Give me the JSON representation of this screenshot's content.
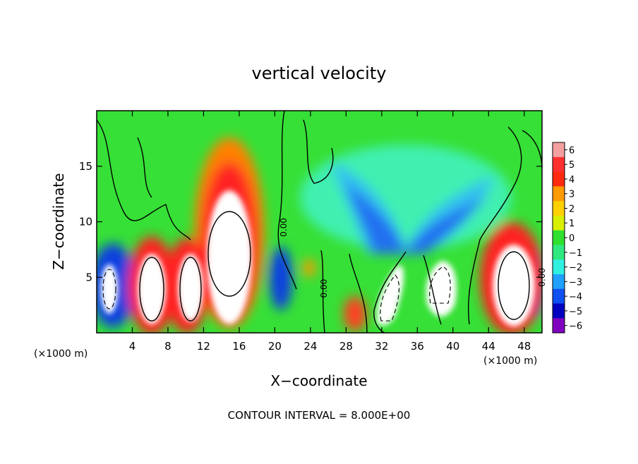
{
  "chart_data": {
    "type": "heatmap",
    "title": "vertical velocity",
    "xlabel": "X−coordinate",
    "ylabel": "Z−coordinate",
    "x_unit_left": "(×1000 m)",
    "x_unit_right": "(×1000 m)",
    "footer": "CONTOUR INTERVAL = 8.000E+00",
    "xlim": [
      0,
      50
    ],
    "ylim": [
      0,
      20
    ],
    "x_ticks": [
      4,
      8,
      12,
      16,
      20,
      24,
      28,
      32,
      36,
      40,
      44,
      48
    ],
    "y_ticks": [
      5,
      10,
      15
    ],
    "colorbar": {
      "levels": [
        6,
        5,
        4,
        3,
        2,
        1,
        0,
        "−1",
        "−2",
        "−3",
        "−4",
        "−5",
        "−6"
      ],
      "colors": [
        "#f4a0a0",
        "#ff3030",
        "#ff2a10",
        "#ff9a00",
        "#ffd000",
        "#d8f000",
        "#30e030",
        "#30e880",
        "#30f0e0",
        "#20a0ff",
        "#1050f0",
        "#0000c0",
        "#8000c0"
      ]
    },
    "contour_labels": [
      {
        "text": "0.00",
        "x": 21,
        "y": 9.5
      },
      {
        "text": "0.00",
        "x": 25.5,
        "y": 4
      },
      {
        "text": "0.00",
        "x": 50,
        "y": 5
      }
    ],
    "updraft_cells": [
      {
        "x": 1.5,
        "z": 4.5,
        "value": -9
      },
      {
        "x": 6.5,
        "z": 4.2,
        "value": 12
      },
      {
        "x": 10.5,
        "z": 4.2,
        "value": 11
      },
      {
        "x": 14.5,
        "z": 7.5,
        "value": 20
      },
      {
        "x": 20,
        "z": 6,
        "value": -3
      },
      {
        "x": 24,
        "z": 6,
        "value": 2
      },
      {
        "x": 29,
        "z": 2,
        "value": 3
      },
      {
        "x": 33,
        "z": 3.5,
        "value": -8
      },
      {
        "x": 38,
        "z": 5,
        "value": -8
      },
      {
        "x": 46.5,
        "z": 5,
        "value": 12
      }
    ]
  }
}
